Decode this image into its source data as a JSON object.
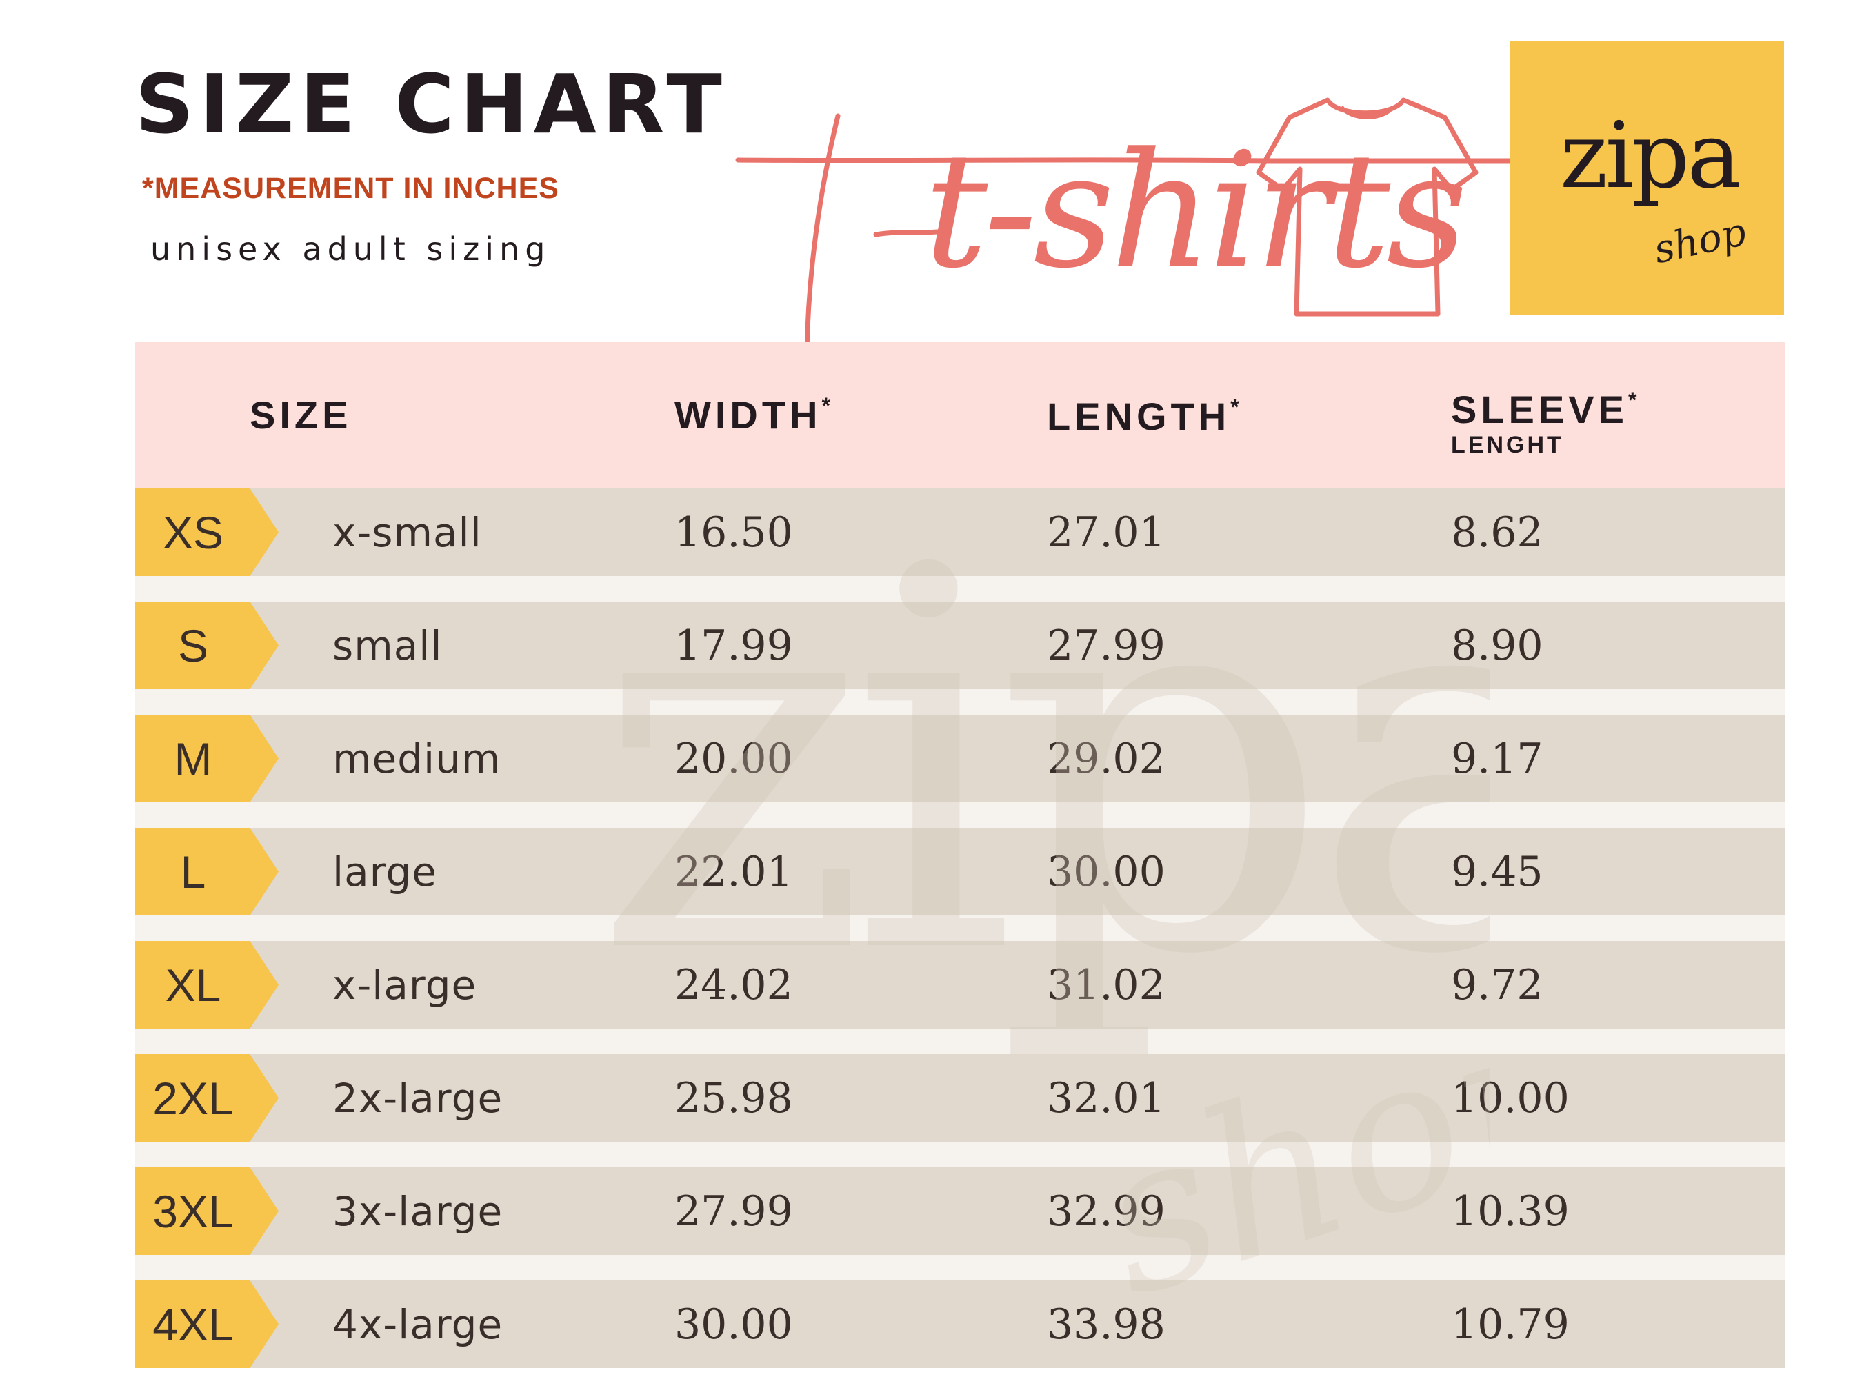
{
  "header": {
    "title": "SIZE CHART",
    "subtitle": "*MEASUREMENT IN INCHES",
    "sizing_note": "unisex adult sizing",
    "script_title": "t-shirts"
  },
  "logo": {
    "main": "zipa",
    "sub": "shop"
  },
  "watermark": {
    "main": "zipa",
    "sub": "shop"
  },
  "colors": {
    "accent_yellow": "#f7c54b",
    "header_pink": "#fddfdb",
    "row_beige": "#e1d9cd",
    "script_coral": "#e9736b",
    "subtitle_orange": "#c0451f"
  },
  "table": {
    "columns": {
      "size": "SIZE",
      "width": "WIDTH",
      "width_mark": "*",
      "length": "LENGTH",
      "length_mark": "*",
      "sleeve": "SLEEVE",
      "sleeve_mark": "*",
      "sleeve_sub": "LENGHT"
    },
    "rows": [
      {
        "code": "XS",
        "name": "x-small",
        "width": "16.50",
        "length": "27.01",
        "sleeve": "8.62"
      },
      {
        "code": "S",
        "name": "small",
        "width": "17.99",
        "length": "27.99",
        "sleeve": "8.90"
      },
      {
        "code": "M",
        "name": "medium",
        "width": "20.00",
        "length": "29.02",
        "sleeve": "9.17"
      },
      {
        "code": "L",
        "name": "large",
        "width": "22.01",
        "length": "30.00",
        "sleeve": "9.45"
      },
      {
        "code": "XL",
        "name": "x-large",
        "width": "24.02",
        "length": "31.02",
        "sleeve": "9.72"
      },
      {
        "code": "2XL",
        "name": "2x-large",
        "width": "25.98",
        "length": "32.01",
        "sleeve": "10.00"
      },
      {
        "code": "3XL",
        "name": "3x-large",
        "width": "27.99",
        "length": "32.99",
        "sleeve": "10.39"
      },
      {
        "code": "4XL",
        "name": "4x-large",
        "width": "30.00",
        "length": "33.98",
        "sleeve": "10.79"
      }
    ]
  }
}
